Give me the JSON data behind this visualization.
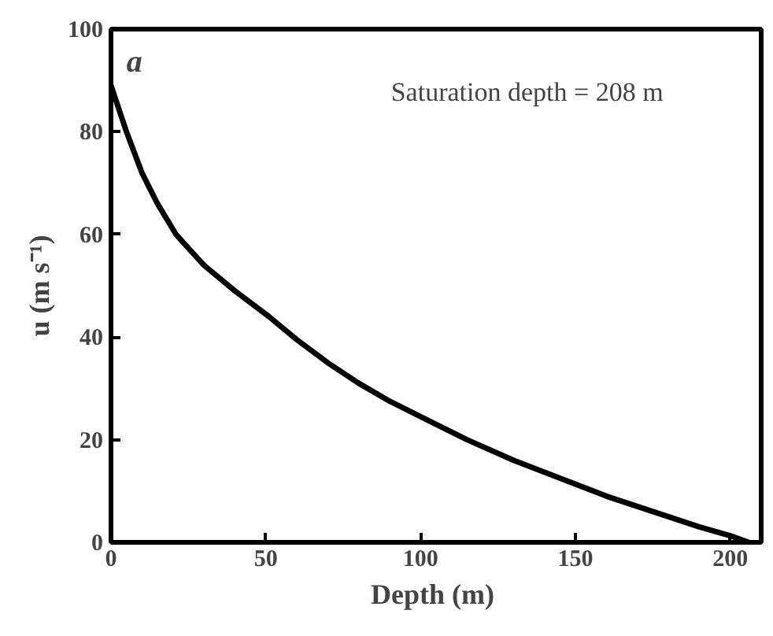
{
  "chart_data": {
    "type": "line",
    "xlabel": "Depth  (m)",
    "ylabel": "u (m s⁻¹)",
    "annotations": [
      "a",
      "Saturation depth = 208 m"
    ],
    "x": [
      0,
      5,
      10,
      15,
      21,
      30,
      40,
      51,
      60,
      70,
      80,
      90,
      100,
      115,
      130,
      145,
      160,
      175,
      190,
      200,
      206
    ],
    "series": [
      {
        "color": "#000000",
        "values": [
          89,
          80,
          72,
          66,
          60,
          54,
          49,
          44,
          39.5,
          35,
          31,
          27.5,
          24.5,
          20,
          16,
          12.5,
          9,
          6,
          3,
          1.3,
          0
        ]
      }
    ],
    "xlim": [
      0,
      210
    ],
    "ylim": [
      0,
      100
    ],
    "xticks": [
      0,
      50,
      100,
      150,
      200
    ],
    "yticks": [
      0,
      20,
      40,
      60,
      80,
      100
    ],
    "grid": false,
    "marker": "none",
    "line_style": "solid"
  }
}
